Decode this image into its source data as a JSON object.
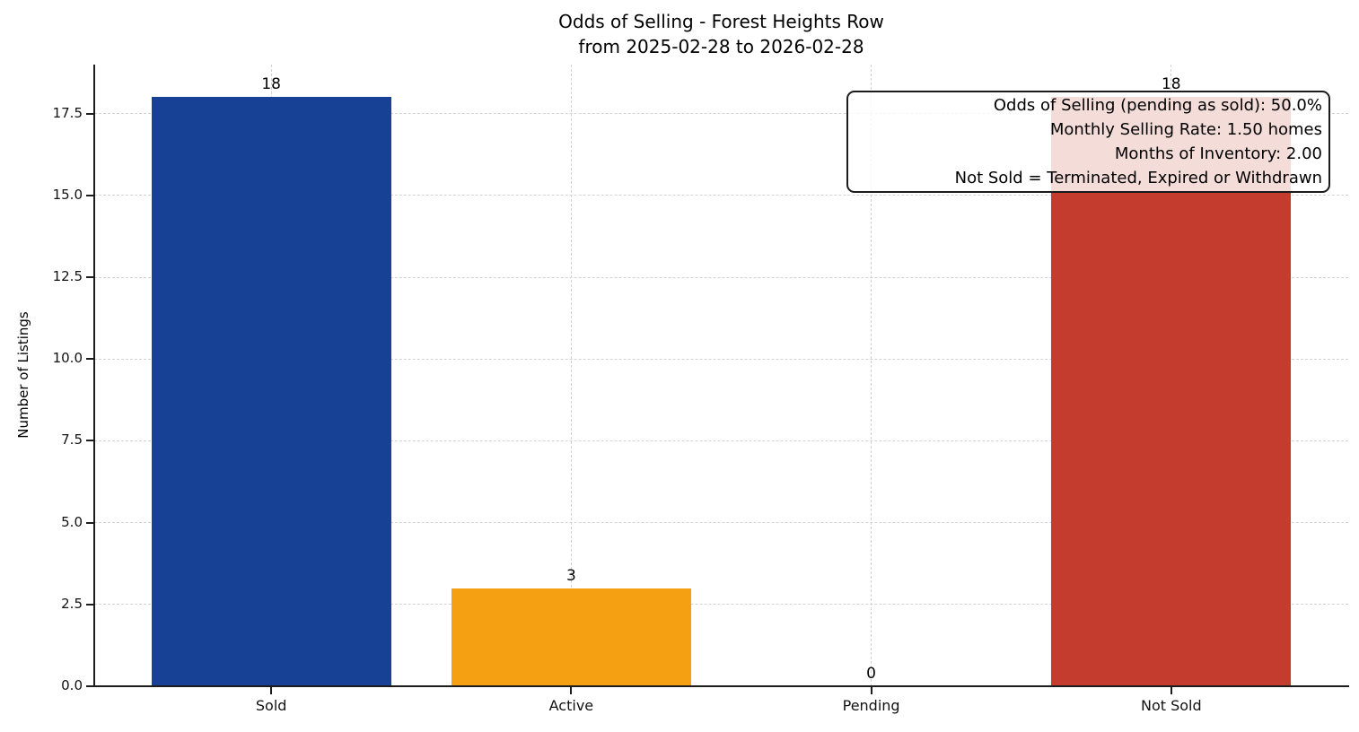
{
  "figure": {
    "background": "#ffffff",
    "axis_color": "#1c1c1c",
    "grid_color": "#d2d2d2"
  },
  "chart_data": {
    "type": "bar",
    "title": "Odds of Selling - Forest Heights Row",
    "subtitle": "from 2025-02-28 to 2026-02-28",
    "xlabel": "",
    "ylabel": "Number of Listings",
    "categories": [
      "Sold",
      "Active",
      "Pending",
      "Not Sold"
    ],
    "values": [
      18,
      3,
      0,
      18
    ],
    "value_labels": [
      "18",
      "3",
      "0",
      "18"
    ],
    "bar_colors": [
      "#164194",
      "#F4A012",
      null,
      "#C33C2D"
    ],
    "ylim": [
      0,
      19
    ],
    "ytick_values": [
      0,
      2.5,
      5,
      7.5,
      10,
      12.5,
      15,
      17.5
    ],
    "ytick_labels": [
      "0.0",
      "2.5",
      "5.0",
      "7.5",
      "10.0",
      "12.5",
      "15.0",
      "17.5"
    ],
    "bar_width_ratio": 0.8,
    "grid": true,
    "grid_style": "dashed",
    "legend_position": "none",
    "annotation_box": {
      "lines": [
        "Odds of Selling (pending as sold): 50.0%",
        "Monthly Selling Rate: 1.50 homes",
        "Months of Inventory: 2.00",
        "Not Sold = Terminated, Expired or Withdrawn"
      ]
    }
  }
}
